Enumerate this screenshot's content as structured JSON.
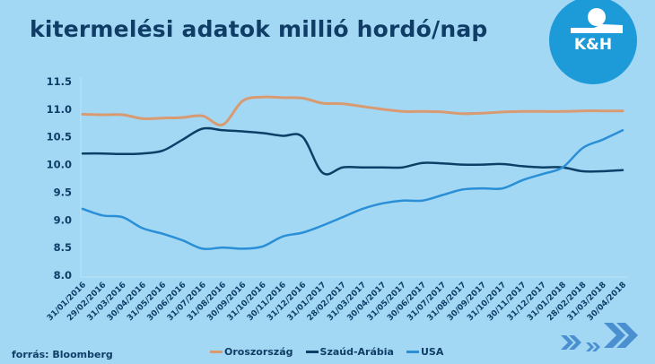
{
  "header": {
    "title": "kitermelési adatok millió hordó/nap",
    "logo_text": "K&H"
  },
  "footer": {
    "source": "forrás: Bloomberg"
  },
  "colors": {
    "background": "#a3d8f5",
    "text": "#0f3d66",
    "logo": "#1d9ad8",
    "oroszorszag": "#d89a70",
    "szaud_arabia": "#0e3f66",
    "usa": "#2a8fd6",
    "arrows": "#4a8fd0"
  },
  "chart_data": {
    "type": "line",
    "title": "kitermelési adatok millió hordó/nap",
    "xlabel": "",
    "ylabel": "millió hordó/nap",
    "ylim": [
      8.0,
      11.5
    ],
    "yticks": [
      "8.0",
      "8.5",
      "9.0",
      "9.5",
      "10.0",
      "10.5",
      "11.0",
      "11.5"
    ],
    "grid": false,
    "legend_position": "bottom",
    "x": [
      "31/01/2016",
      "29/02/2016",
      "31/03/2016",
      "30/04/2016",
      "31/05/2016",
      "30/06/2016",
      "31/07/2016",
      "31/08/2016",
      "30/09/2016",
      "31/10/2016",
      "30/11/2016",
      "31/12/2016",
      "31/01/2017",
      "28/02/2017",
      "31/03/2017",
      "30/04/2017",
      "31/05/2017",
      "30/06/2017",
      "31/07/2017",
      "31/08/2017",
      "30/09/2017",
      "31/10/2017",
      "30/11/2017",
      "31/12/2017",
      "31/01/2018",
      "28/02/2018",
      "31/03/2018",
      "30/04/2018"
    ],
    "series": [
      {
        "name": "Oroszország",
        "color": "#d89a70",
        "values": [
          10.91,
          10.9,
          10.9,
          10.83,
          10.84,
          10.85,
          10.88,
          10.72,
          11.15,
          11.22,
          11.21,
          11.2,
          11.11,
          11.1,
          11.05,
          11.0,
          10.96,
          10.96,
          10.95,
          10.92,
          10.93,
          10.95,
          10.96,
          10.96,
          10.96,
          10.97,
          10.97,
          10.97
        ]
      },
      {
        "name": "Szaúd-Arábia",
        "color": "#0e3f66",
        "values": [
          10.2,
          10.2,
          10.19,
          10.2,
          10.25,
          10.45,
          10.65,
          10.62,
          10.6,
          10.57,
          10.52,
          10.5,
          9.85,
          9.95,
          9.95,
          9.95,
          9.95,
          10.03,
          10.02,
          10.0,
          10.0,
          10.01,
          9.97,
          9.95,
          9.95,
          9.88,
          9.88,
          9.9
        ]
      },
      {
        "name": "USA",
        "color": "#2a8fd6",
        "values": [
          9.2,
          9.08,
          9.05,
          8.85,
          8.75,
          8.63,
          8.48,
          8.5,
          8.48,
          8.52,
          8.7,
          8.77,
          8.9,
          9.05,
          9.2,
          9.3,
          9.35,
          9.35,
          9.45,
          9.55,
          9.57,
          9.57,
          9.72,
          9.83,
          9.95,
          10.3,
          10.45,
          10.62
        ]
      }
    ]
  }
}
